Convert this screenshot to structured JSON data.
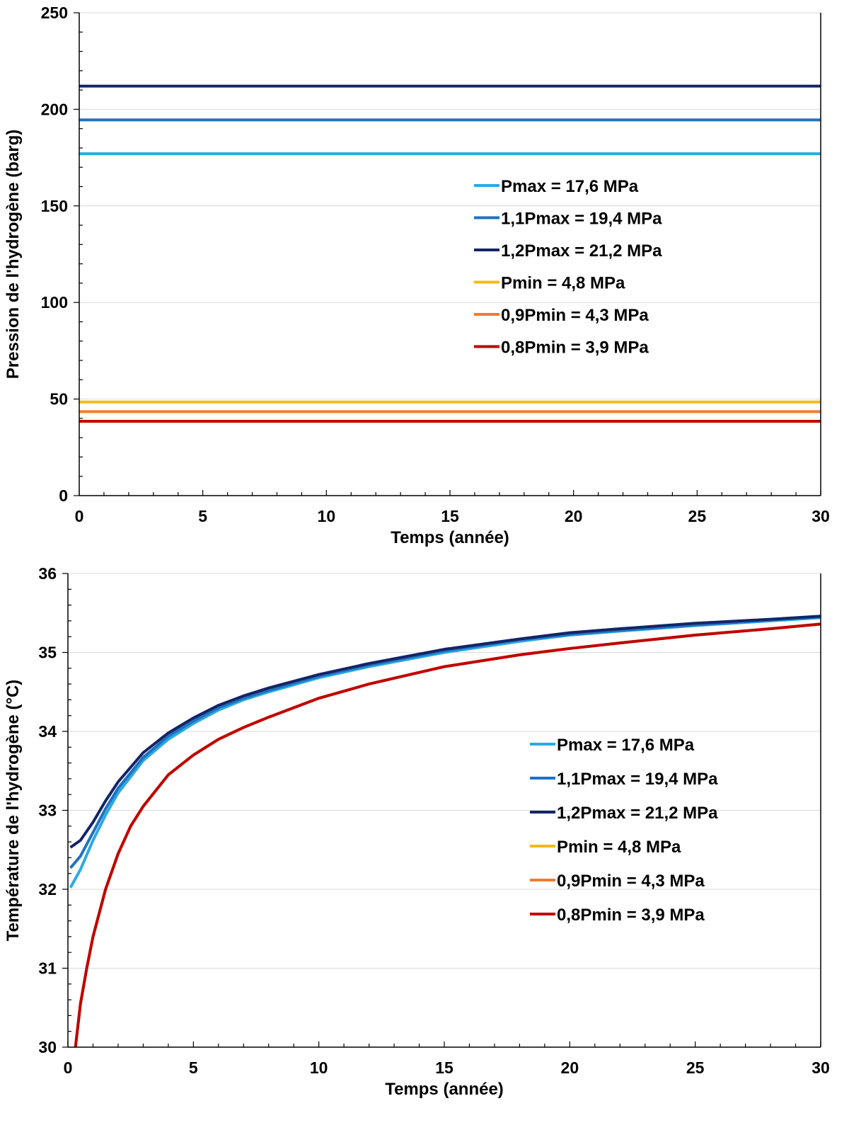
{
  "chart_data": [
    {
      "type": "line",
      "title": "",
      "xlabel": "Temps (année)",
      "ylabel": "Pression de l'hydrogène (barg)",
      "xlim": [
        0,
        30
      ],
      "ylim": [
        0,
        250
      ],
      "xticks": [
        0,
        5,
        10,
        15,
        20,
        25,
        30
      ],
      "yticks": [
        0,
        50,
        100,
        150,
        200,
        250
      ],
      "grid": true,
      "legend_position": "center-right",
      "series": [
        {
          "name": "Pmax = 17,6 MPa",
          "color": "#29ABE2",
          "x": [
            0,
            30
          ],
          "values": [
            177,
            177
          ]
        },
        {
          "name": "1,1Pmax = 19,4 MPa",
          "color": "#1F72C0",
          "x": [
            0,
            30
          ],
          "values": [
            194.5,
            194.5
          ]
        },
        {
          "name": "1,2Pmax = 21,2 MPa",
          "color": "#142466",
          "x": [
            0,
            30
          ],
          "values": [
            212,
            212
          ]
        },
        {
          "name": "Pmin = 4,8 MPa",
          "color": "#F5B91E",
          "x": [
            0,
            30
          ],
          "values": [
            48.5,
            48.5
          ]
        },
        {
          "name": "0,9Pmin = 4,3 MPa",
          "color": "#ED7D31",
          "x": [
            0,
            30
          ],
          "values": [
            43.5,
            43.5
          ]
        },
        {
          "name": "0,8Pmin = 3,9 MPa",
          "color": "#C00000",
          "x": [
            0,
            30
          ],
          "values": [
            38.5,
            38.5
          ]
        }
      ]
    },
    {
      "type": "line",
      "title": "",
      "xlabel": "Temps (année)",
      "ylabel": "Température de l'hydrogène (°C)",
      "xlim": [
        0,
        30
      ],
      "ylim": [
        30,
        36
      ],
      "xticks": [
        0,
        5,
        10,
        15,
        20,
        25,
        30
      ],
      "yticks": [
        30,
        31,
        32,
        33,
        34,
        35,
        36
      ],
      "grid": true,
      "legend_position": "center-right",
      "series": [
        {
          "name": "Pmax = 17,6 MPa",
          "color": "#29ABE2",
          "x": [
            0.1,
            0.5,
            1,
            1.5,
            2,
            3,
            4,
            5,
            6,
            7,
            8,
            10,
            12,
            15,
            18,
            20,
            22,
            25,
            28,
            30
          ],
          "values": [
            32.02,
            32.25,
            32.62,
            32.94,
            33.22,
            33.63,
            33.9,
            34.1,
            34.27,
            34.4,
            34.5,
            34.68,
            34.82,
            35.0,
            35.14,
            35.22,
            35.27,
            35.34,
            35.4,
            35.44
          ]
        },
        {
          "name": "1,1Pmax = 19,4 MPa",
          "color": "#1F72C0",
          "x": [
            0.1,
            0.5,
            1,
            1.5,
            2,
            3,
            4,
            5,
            6,
            7,
            8,
            10,
            12,
            15,
            18,
            20,
            22,
            25,
            28,
            30
          ],
          "values": [
            32.27,
            32.42,
            32.72,
            33.02,
            33.28,
            33.67,
            33.94,
            34.13,
            34.3,
            34.42,
            34.52,
            34.7,
            34.84,
            35.02,
            35.16,
            35.23,
            35.28,
            35.35,
            35.41,
            35.45
          ]
        },
        {
          "name": "1,2Pmax = 21,2 MPa",
          "color": "#142466",
          "x": [
            0.1,
            0.5,
            1,
            1.5,
            2,
            3,
            4,
            5,
            6,
            7,
            8,
            10,
            12,
            15,
            18,
            20,
            22,
            25,
            28,
            30
          ],
          "values": [
            32.53,
            32.62,
            32.85,
            33.12,
            33.36,
            33.73,
            33.98,
            34.17,
            34.33,
            34.45,
            34.55,
            34.72,
            34.86,
            35.04,
            35.17,
            35.25,
            35.3,
            35.37,
            35.42,
            35.46
          ]
        },
        {
          "name": "Pmin = 4,8 MPa",
          "color": "#F5B91E",
          "x": [
            0.3,
            0.5,
            0.75,
            1,
            1.5,
            2,
            2.5,
            3,
            4,
            5,
            6,
            7,
            8,
            10,
            12,
            15,
            18,
            20,
            22,
            25,
            28,
            30
          ],
          "values": [
            30.0,
            30.55,
            31.0,
            31.4,
            32.0,
            32.45,
            32.8,
            33.05,
            33.45,
            33.7,
            33.9,
            34.05,
            34.18,
            34.42,
            34.6,
            34.82,
            34.97,
            35.05,
            35.12,
            35.22,
            35.3,
            35.36
          ]
        },
        {
          "name": "0,9Pmin = 4,3 MPa",
          "color": "#ED7D31",
          "x": [
            0.3,
            0.5,
            0.75,
            1,
            1.5,
            2,
            2.5,
            3,
            4,
            5,
            6,
            7,
            8,
            10,
            12,
            15,
            18,
            20,
            22,
            25,
            28,
            30
          ],
          "values": [
            30.0,
            30.55,
            31.0,
            31.4,
            32.0,
            32.45,
            32.8,
            33.05,
            33.45,
            33.7,
            33.9,
            34.05,
            34.18,
            34.42,
            34.6,
            34.82,
            34.97,
            35.05,
            35.12,
            35.22,
            35.3,
            35.36
          ]
        },
        {
          "name": "0,8Pmin = 3,9 MPa",
          "color": "#C00000",
          "x": [
            0.3,
            0.5,
            0.75,
            1,
            1.5,
            2,
            2.5,
            3,
            4,
            5,
            6,
            7,
            8,
            10,
            12,
            15,
            18,
            20,
            22,
            25,
            28,
            30
          ],
          "values": [
            30.0,
            30.55,
            31.0,
            31.4,
            32.0,
            32.45,
            32.8,
            33.05,
            33.45,
            33.7,
            33.9,
            34.05,
            34.18,
            34.42,
            34.6,
            34.82,
            34.97,
            35.05,
            35.12,
            35.22,
            35.3,
            35.36
          ]
        }
      ]
    }
  ]
}
